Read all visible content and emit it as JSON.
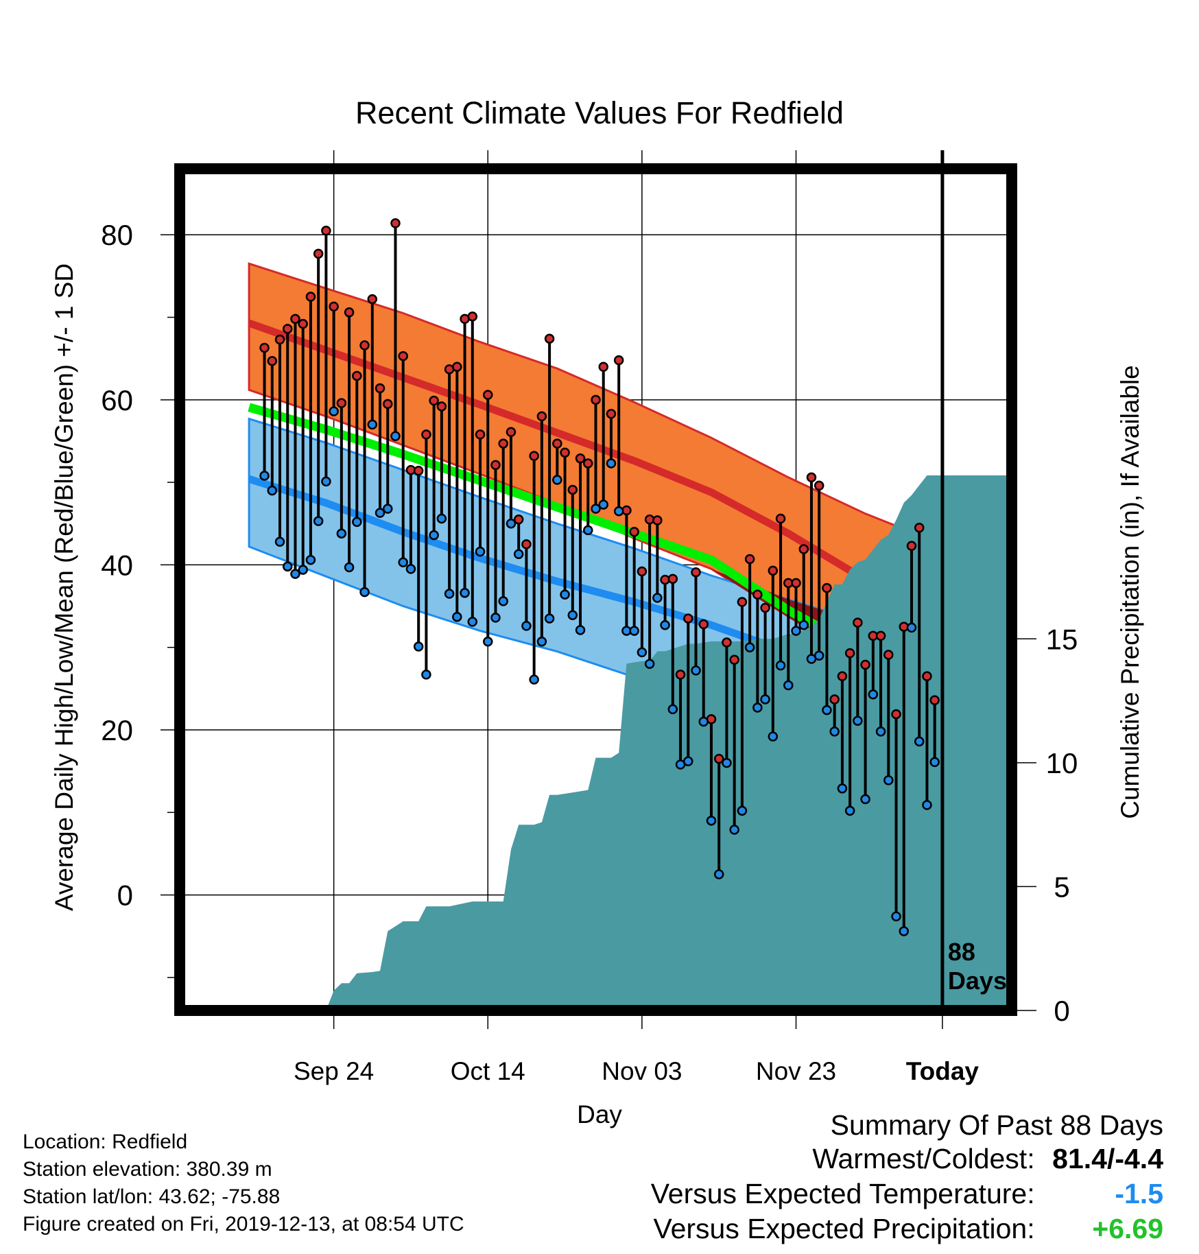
{
  "title": "Recent Climate Values For Redfield",
  "ylabel_left": "Average Daily High/Low/Mean (Red/Blue/Green) +/- 1 SD",
  "ylabel_right": "Cumulative Precipitation (in), If Available",
  "xlabel": "Day",
  "today_annotation": {
    "line1": "88",
    "line2": "Days"
  },
  "footer": {
    "location": "Location: Redfield",
    "elevation": "Station elevation: 380.39 m",
    "latlon": "Station lat/lon: 43.62; -75.88",
    "created": "Figure created on Fri, 2019-12-13, at 08:54 UTC"
  },
  "summary": {
    "title": "Summary Of Past 88 Days",
    "warm_cold_label": "Warmest/Coldest:",
    "warm_cold_value": "81.4/-4.4",
    "temp_label": "Versus Expected Temperature:",
    "temp_value": "-1.5",
    "precip_label": "Versus Expected Precipitation:",
    "precip_value": "+6.69"
  },
  "colors": {
    "high_band": "#f47b33",
    "high_mean": "#d42a2a",
    "low_band": "#83c3ea",
    "low_mean": "#1e8cf0",
    "mean_line": "#00ee00",
    "overlap": "#8e1517",
    "precip": "#4a9aa2",
    "high_marker": "#d03030",
    "low_marker": "#2288e6",
    "temp_value": "#1e8cf0",
    "precip_value": "#22c22a"
  },
  "chart_data": {
    "type": "line",
    "x_units": "days relative to today (2019-12-12)",
    "x_range": [
      -99,
      9
    ],
    "xticks": [
      {
        "label": "Sep 24",
        "x": -79
      },
      {
        "label": "Oct 14",
        "x": -59
      },
      {
        "label": "Nov 03",
        "x": -39
      },
      {
        "label": "Nov 23",
        "x": -19
      },
      {
        "label": "Today",
        "x": 0
      }
    ],
    "y_range": [
      -14,
      88
    ],
    "yticks": [
      0,
      20,
      40,
      60,
      80
    ],
    "precip_range": [
      0,
      33.7
    ],
    "precip_ticks": [
      0,
      5,
      10,
      15
    ],
    "normal": {
      "x": [
        -90,
        -80,
        -70,
        -60,
        -50,
        -40,
        -30,
        -20,
        -10,
        0,
        9
      ],
      "high_plus_sd": [
        76.5,
        73.5,
        70.5,
        67.0,
        63.8,
        59.7,
        55.4,
        50.6,
        46.2,
        42.5,
        41.0
      ],
      "high_mean": [
        69.3,
        66.0,
        62.7,
        59.4,
        56.0,
        52.6,
        48.8,
        43.8,
        38.2,
        33.0,
        30.6
      ],
      "mean": [
        59.1,
        56.4,
        53.4,
        50.2,
        47.0,
        43.8,
        40.6,
        34.5,
        29.4,
        24.4,
        22.0
      ],
      "high_minus_sd": [
        61.2,
        58.0,
        54.5,
        51.0,
        47.4,
        43.2,
        39.5,
        33.6,
        28.0,
        23.6,
        21.8
      ],
      "low_plus_sd": [
        57.7,
        54.8,
        51.5,
        48.2,
        45.0,
        42.0,
        38.7,
        35.8,
        32.9,
        29.8,
        27.8
      ],
      "low_mean": [
        50.4,
        47.5,
        44.0,
        40.8,
        38.0,
        35.5,
        32.7,
        29.4,
        25.5,
        21.2,
        18.6
      ],
      "low_minus_sd": [
        42.2,
        38.6,
        35.0,
        32.0,
        29.5,
        26.4,
        21.5,
        14.8,
        8.0,
        2.5,
        -0.5
      ]
    },
    "series": [
      {
        "name": "High",
        "x": [
          -88,
          -87,
          -86,
          -85,
          -84,
          -83,
          -82,
          -81,
          -80,
          -79,
          -78,
          -77,
          -76,
          -75,
          -74,
          -73,
          -72,
          -71,
          -70,
          -69,
          -68,
          -67,
          -66,
          -65,
          -64,
          -63,
          -62,
          -61,
          -60,
          -59,
          -58,
          -57,
          -56,
          -55,
          -54,
          -53,
          -52,
          -51,
          -50,
          -49,
          -48,
          -47,
          -46,
          -45,
          -44,
          -43,
          -42,
          -41,
          -40,
          -39,
          -38,
          -37,
          -36,
          -35,
          -34,
          -33,
          -32,
          -31,
          -30,
          -29,
          -28,
          -27,
          -26,
          -25,
          -24,
          -23,
          -22,
          -21,
          -20,
          -19,
          -18,
          -17,
          -16,
          -15,
          -14,
          -13,
          -12,
          -11,
          -10,
          -9,
          -8,
          -7,
          -6,
          -5,
          -4,
          -3,
          -2,
          -1
        ],
        "values": [
          66.3,
          64.7,
          67.3,
          68.6,
          69.8,
          69.2,
          72.5,
          77.7,
          80.5,
          71.3,
          59.6,
          70.6,
          62.9,
          66.6,
          72.2,
          61.4,
          59.5,
          81.4,
          65.3,
          51.5,
          51.4,
          55.8,
          59.9,
          59.2,
          63.7,
          64.0,
          69.8,
          70.1,
          55.8,
          60.6,
          52.1,
          54.7,
          56.1,
          45.5,
          42.5,
          53.2,
          58.0,
          67.4,
          54.7,
          53.6,
          49.1,
          52.9,
          52.3,
          60.0,
          64.0,
          58.3,
          64.8,
          46.6,
          44.0,
          39.2,
          45.5,
          45.4,
          38.2,
          38.3,
          26.7,
          33.5,
          39.1,
          32.8,
          21.3,
          16.5,
          30.6,
          28.5,
          35.5,
          40.7,
          36.4,
          34.8,
          39.3,
          45.6,
          37.8,
          37.8,
          41.9,
          50.6,
          49.6,
          37.2,
          23.7,
          26.5,
          29.3,
          33.0,
          27.9,
          31.4,
          31.4,
          29.1,
          21.9,
          32.5,
          42.3,
          44.5,
          26.5,
          23.6
        ]
      },
      {
        "name": "Low",
        "x": [
          -88,
          -87,
          -86,
          -85,
          -84,
          -83,
          -82,
          -81,
          -80,
          -79,
          -78,
          -77,
          -76,
          -75,
          -74,
          -73,
          -72,
          -71,
          -70,
          -69,
          -68,
          -67,
          -66,
          -65,
          -64,
          -63,
          -62,
          -61,
          -60,
          -59,
          -58,
          -57,
          -56,
          -55,
          -54,
          -53,
          -52,
          -51,
          -50,
          -49,
          -48,
          -47,
          -46,
          -45,
          -44,
          -43,
          -42,
          -41,
          -40,
          -39,
          -38,
          -37,
          -36,
          -35,
          -34,
          -33,
          -32,
          -31,
          -30,
          -29,
          -28,
          -27,
          -26,
          -25,
          -24,
          -23,
          -22,
          -21,
          -20,
          -19,
          -18,
          -17,
          -16,
          -15,
          -14,
          -13,
          -12,
          -11,
          -10,
          -9,
          -8,
          -7,
          -6,
          -5,
          -4,
          -3,
          -2,
          -1
        ],
        "values": [
          50.8,
          49.0,
          42.8,
          39.8,
          38.9,
          39.4,
          40.6,
          45.3,
          50.1,
          58.6,
          43.8,
          39.7,
          45.2,
          36.7,
          57.0,
          46.3,
          46.8,
          55.6,
          40.3,
          39.5,
          30.1,
          26.7,
          43.6,
          45.6,
          36.5,
          33.7,
          36.6,
          33.1,
          41.6,
          30.7,
          33.6,
          35.6,
          45.0,
          41.3,
          32.6,
          26.1,
          30.7,
          33.5,
          50.3,
          36.4,
          33.9,
          32.1,
          44.2,
          46.8,
          47.3,
          52.3,
          46.5,
          32.0,
          32.0,
          29.4,
          28.0,
          36.0,
          32.7,
          22.5,
          15.8,
          16.2,
          27.2,
          21.0,
          9.0,
          2.5,
          16.0,
          7.9,
          10.2,
          30.0,
          22.7,
          23.7,
          19.2,
          27.8,
          25.4,
          32.0,
          32.7,
          28.6,
          29.0,
          22.4,
          19.8,
          12.9,
          10.2,
          21.1,
          11.6,
          24.3,
          19.8,
          13.9,
          -2.6,
          -4.4,
          32.4,
          18.6,
          10.9,
          16.1
        ]
      },
      {
        "name": "Cumulative Precipitation",
        "x": [
          -90,
          -86,
          -82,
          -80,
          -79,
          -78,
          -77,
          -76,
          -74,
          -73,
          -72,
          -71,
          -70,
          -68,
          -67,
          -64,
          -61,
          -59,
          -58,
          -57,
          -56,
          -55,
          -53,
          -52,
          -51,
          -50,
          -48,
          -46,
          -45,
          -43,
          -42,
          -41,
          -39,
          -38,
          -37,
          -36,
          -34,
          -33,
          -32,
          -30,
          -28,
          -26,
          -24,
          -22,
          -21,
          -20,
          -19,
          -17,
          -16,
          -14,
          -13,
          -12,
          -11,
          -10,
          -9,
          -8,
          -7,
          -6,
          -5,
          -4,
          -3,
          -2,
          0,
          9
        ],
        "values": [
          0,
          0,
          0,
          0,
          0.8,
          1.1,
          1.1,
          1.5,
          1.55,
          1.6,
          3.2,
          3.4,
          3.6,
          3.6,
          4.2,
          4.2,
          4.4,
          4.4,
          4.4,
          4.4,
          6.5,
          7.5,
          7.5,
          7.6,
          8.7,
          8.7,
          8.8,
          8.9,
          10.2,
          10.2,
          10.4,
          14.0,
          14.1,
          14.1,
          14.5,
          14.5,
          14.7,
          14.8,
          14.8,
          14.9,
          14.9,
          14.9,
          15.0,
          15.0,
          15.1,
          15.2,
          15.2,
          15.5,
          15.8,
          17.2,
          17.2,
          17.8,
          18.1,
          18.2,
          18.6,
          19.0,
          19.2,
          19.8,
          20.5,
          20.8,
          21.2,
          21.6,
          21.6,
          21.6
        ]
      }
    ]
  }
}
